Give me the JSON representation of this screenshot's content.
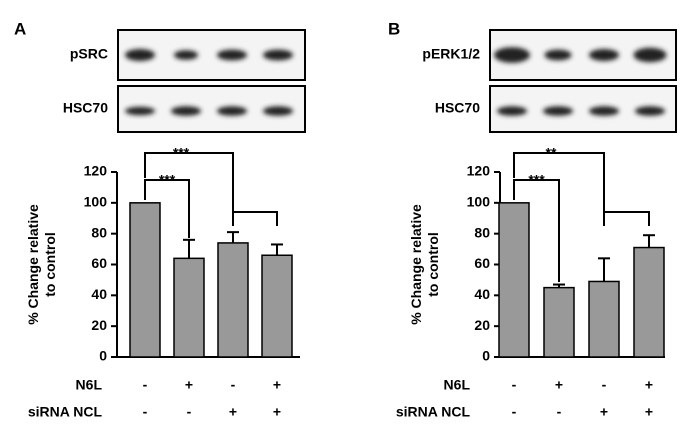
{
  "chart_data": [
    {
      "type": "bar",
      "panel": "A",
      "blot_labels": [
        "pSRC",
        "HSC70"
      ],
      "ylabel": [
        "% Change relative",
        "to control"
      ],
      "values": [
        100,
        64,
        74,
        66
      ],
      "errors": [
        0,
        12,
        7,
        7
      ],
      "color": "#999999",
      "ylim": [
        0,
        120
      ],
      "yticks": [
        0,
        20,
        40,
        60,
        80,
        100,
        120
      ],
      "conditions": [
        {
          "name": "N6L",
          "signs": [
            "-",
            "+",
            "-",
            "+"
          ]
        },
        {
          "name": "siRNA NCL",
          "signs": [
            "-",
            "-",
            "+",
            "+"
          ]
        }
      ],
      "annotations": [
        "***",
        "***"
      ]
    },
    {
      "type": "bar",
      "panel": "B",
      "blot_labels": [
        "pERK1/2",
        "HSC70"
      ],
      "ylabel": [
        "% Change relative",
        "to control"
      ],
      "values": [
        100,
        45,
        49,
        71
      ],
      "errors": [
        0,
        2,
        15,
        8
      ],
      "color": "#999999",
      "ylim": [
        0,
        120
      ],
      "yticks": [
        0,
        20,
        40,
        60,
        80,
        100,
        120
      ],
      "conditions": [
        {
          "name": "N6L",
          "signs": [
            "-",
            "+",
            "-",
            "+"
          ]
        },
        {
          "name": "siRNA NCL",
          "signs": [
            "-",
            "-",
            "+",
            "+"
          ]
        }
      ],
      "annotations": [
        "***",
        "**"
      ]
    }
  ]
}
